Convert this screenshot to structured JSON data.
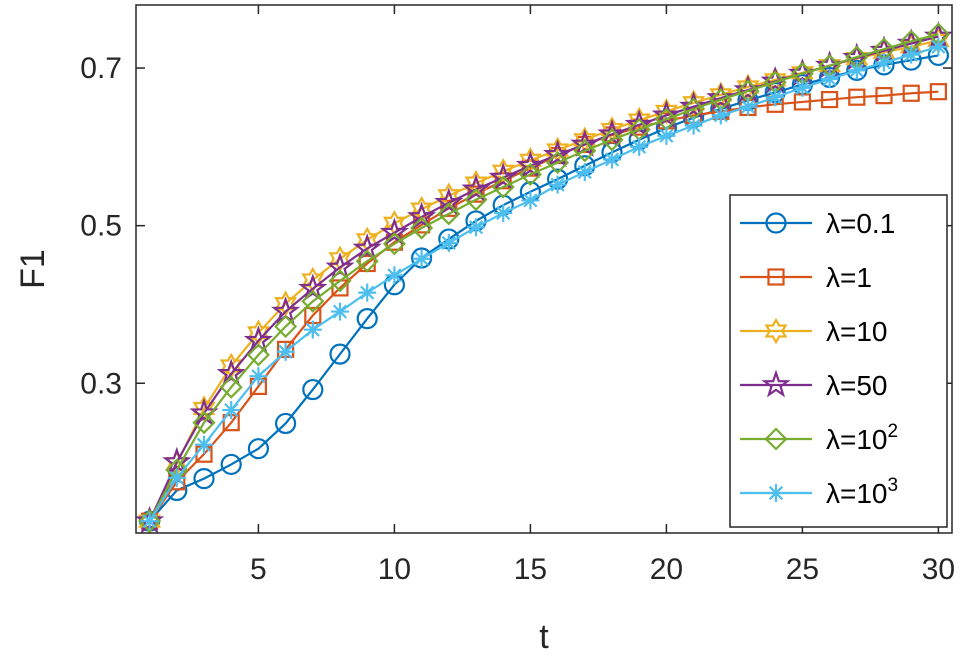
{
  "chart_data": {
    "type": "line",
    "xlabel": "t",
    "ylabel": "F1",
    "xlim": [
      0.5,
      30.5
    ],
    "ylim": [
      0.11,
      0.78
    ],
    "xticks": [
      5,
      10,
      15,
      20,
      25,
      30
    ],
    "xtick_labels": [
      "5",
      "10",
      "15",
      "20",
      "25",
      "30"
    ],
    "yticks": [
      0.3,
      0.5,
      0.7
    ],
    "ytick_labels": [
      "0.3",
      "0.5",
      "0.7"
    ],
    "grid": false,
    "legend_position": "lower-right",
    "x": [
      1,
      2,
      3,
      4,
      5,
      6,
      7,
      8,
      9,
      10,
      11,
      12,
      13,
      14,
      15,
      16,
      17,
      18,
      19,
      20,
      21,
      22,
      23,
      24,
      25,
      26,
      27,
      28,
      29,
      30
    ],
    "series": [
      {
        "name": "λ=0.1",
        "legend_base": "λ=0.1",
        "legend_sup": "",
        "color": "#0072BD",
        "marker": "circle",
        "values": [
          0.125,
          0.164,
          0.179,
          0.197,
          0.217,
          0.249,
          0.292,
          0.337,
          0.382,
          0.425,
          0.459,
          0.483,
          0.506,
          0.526,
          0.543,
          0.559,
          0.576,
          0.593,
          0.609,
          0.624,
          0.637,
          0.648,
          0.659,
          0.669,
          0.679,
          0.688,
          0.697,
          0.704,
          0.71,
          0.716
        ]
      },
      {
        "name": "λ=1",
        "legend_base": "λ=1",
        "legend_sup": "",
        "color": "#D95319",
        "marker": "square",
        "values": [
          0.125,
          0.175,
          0.21,
          0.25,
          0.296,
          0.343,
          0.386,
          0.421,
          0.452,
          0.479,
          0.501,
          0.522,
          0.54,
          0.557,
          0.573,
          0.589,
          0.603,
          0.615,
          0.625,
          0.633,
          0.64,
          0.645,
          0.65,
          0.654,
          0.657,
          0.66,
          0.663,
          0.665,
          0.668,
          0.67
        ]
      },
      {
        "name": "λ=10",
        "legend_base": "λ=10",
        "legend_sup": "",
        "color": "#EDB120",
        "marker": "hexagram",
        "values": [
          0.125,
          0.198,
          0.268,
          0.322,
          0.364,
          0.401,
          0.431,
          0.458,
          0.482,
          0.503,
          0.521,
          0.538,
          0.554,
          0.569,
          0.583,
          0.596,
          0.609,
          0.622,
          0.634,
          0.645,
          0.656,
          0.666,
          0.676,
          0.685,
          0.694,
          0.703,
          0.712,
          0.72,
          0.727,
          0.735
        ]
      },
      {
        "name": "λ=50",
        "legend_base": "λ=50",
        "legend_sup": "",
        "color": "#7E2F8E",
        "marker": "pentagram",
        "values": [
          0.125,
          0.2,
          0.262,
          0.312,
          0.354,
          0.391,
          0.42,
          0.447,
          0.471,
          0.491,
          0.511,
          0.529,
          0.546,
          0.561,
          0.576,
          0.59,
          0.603,
          0.616,
          0.628,
          0.64,
          0.651,
          0.662,
          0.672,
          0.683,
          0.693,
          0.703,
          0.713,
          0.722,
          0.731,
          0.74
        ]
      },
      {
        "name": "λ=10²",
        "legend_base": "λ=10",
        "legend_sup": "2",
        "color": "#77AC30",
        "marker": "diamond",
        "values": [
          0.125,
          0.19,
          0.25,
          0.295,
          0.336,
          0.372,
          0.404,
          0.43,
          0.455,
          0.477,
          0.497,
          0.515,
          0.533,
          0.549,
          0.565,
          0.58,
          0.595,
          0.609,
          0.622,
          0.635,
          0.648,
          0.66,
          0.671,
          0.682,
          0.693,
          0.703,
          0.714,
          0.724,
          0.734,
          0.743
        ]
      },
      {
        "name": "λ=10³",
        "legend_base": "λ=10",
        "legend_sup": "3",
        "color": "#4DBEEE",
        "marker": "asterisk",
        "values": [
          0.125,
          0.18,
          0.222,
          0.266,
          0.309,
          0.34,
          0.368,
          0.391,
          0.415,
          0.437,
          0.458,
          0.478,
          0.498,
          0.516,
          0.532,
          0.552,
          0.568,
          0.584,
          0.6,
          0.614,
          0.627,
          0.64,
          0.651,
          0.663,
          0.675,
          0.686,
          0.697,
          0.707,
          0.717,
          0.727
        ]
      }
    ]
  }
}
